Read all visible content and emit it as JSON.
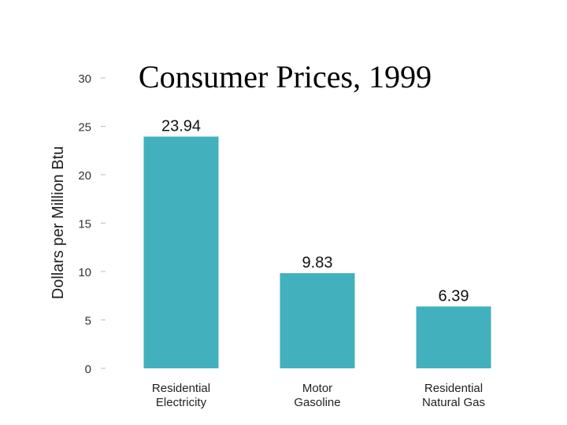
{
  "chart_data": {
    "type": "bar",
    "title": "Consumer Prices, 1999",
    "xlabel": "",
    "ylabel": "Dollars per Million Btu",
    "ylim": [
      0,
      30
    ],
    "yticks": [
      0,
      5,
      10,
      15,
      20,
      25,
      30
    ],
    "grid": false,
    "categories": [
      [
        "Residential",
        "Electricity"
      ],
      [
        "Motor",
        "Gasoline"
      ],
      [
        "Residential",
        "Natural Gas"
      ]
    ],
    "values": [
      23.94,
      9.83,
      6.39
    ],
    "value_labels": [
      "23.94",
      "9.83",
      "6.39"
    ],
    "bar_color": "#42b0bd"
  }
}
